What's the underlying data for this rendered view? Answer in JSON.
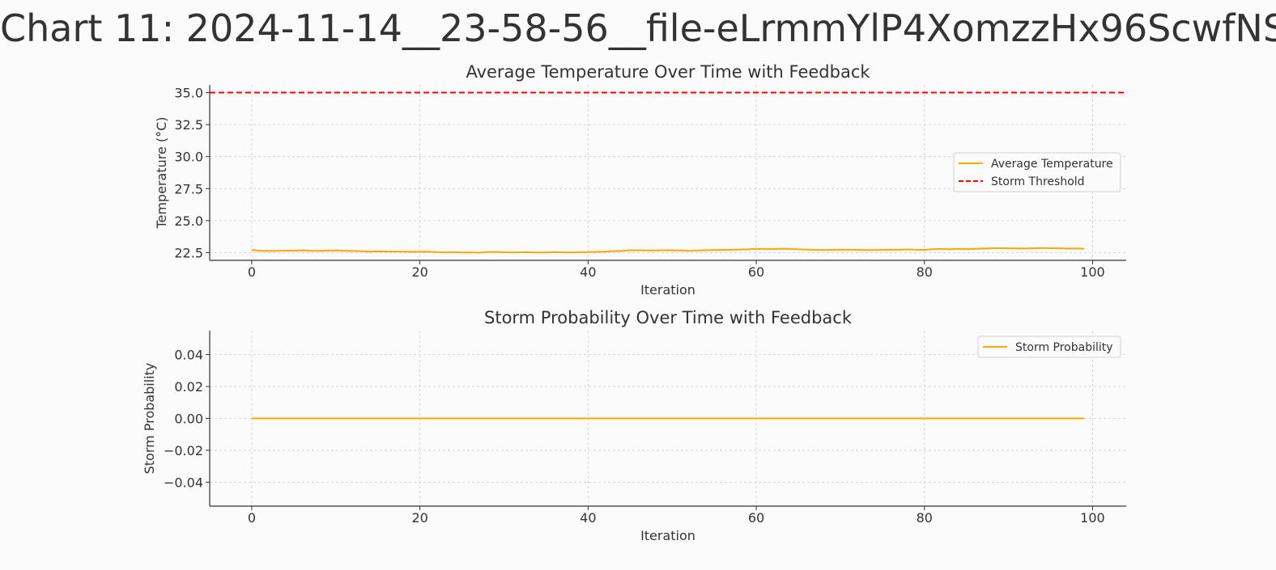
{
  "page_title": "Chart 11: 2024-11-14__23-58-56__file-eLrmmYlP4XomzzHx96ScwfNS",
  "colors": {
    "series": "#FFA500",
    "threshold": "#FF0000",
    "axis": "#333333",
    "grid": "#cccccc"
  },
  "chart_data": [
    {
      "type": "line",
      "title": "Average Temperature Over Time with Feedback",
      "xlabel": "Iteration",
      "ylabel": "Temperature (°C)",
      "xlim": [
        -5,
        104
      ],
      "ylim": [
        21.9,
        35.6
      ],
      "xticks": [
        0,
        20,
        40,
        60,
        80,
        100
      ],
      "xtick_labels": [
        "0",
        "20",
        "40",
        "60",
        "80",
        "100"
      ],
      "yticks": [
        22.5,
        25.0,
        27.5,
        30.0,
        32.5,
        35.0
      ],
      "ytick_labels": [
        "22.5",
        "25.0",
        "27.5",
        "30.0",
        "32.5",
        "35.0"
      ],
      "grid": true,
      "legend_position": "center-right",
      "series": [
        {
          "name": "Average Temperature",
          "style": "solid",
          "x": [
            0,
            1,
            2,
            3,
            4,
            5,
            6,
            7,
            8,
            9,
            10,
            11,
            12,
            13,
            14,
            15,
            16,
            17,
            18,
            19,
            20,
            21,
            22,
            23,
            24,
            25,
            26,
            27,
            28,
            29,
            30,
            31,
            32,
            33,
            34,
            35,
            36,
            37,
            38,
            39,
            40,
            41,
            42,
            43,
            44,
            45,
            46,
            47,
            48,
            49,
            50,
            51,
            52,
            53,
            54,
            55,
            56,
            57,
            58,
            59,
            60,
            61,
            62,
            63,
            64,
            65,
            66,
            67,
            68,
            69,
            70,
            71,
            72,
            73,
            74,
            75,
            76,
            77,
            78,
            79,
            80,
            81,
            82,
            83,
            84,
            85,
            86,
            87,
            88,
            89,
            90,
            91,
            92,
            93,
            94,
            95,
            96,
            97,
            98,
            99
          ],
          "values": [
            22.7,
            22.65,
            22.63,
            22.64,
            22.66,
            22.66,
            22.68,
            22.65,
            22.64,
            22.66,
            22.67,
            22.65,
            22.63,
            22.62,
            22.58,
            22.6,
            22.59,
            22.58,
            22.58,
            22.57,
            22.57,
            22.58,
            22.55,
            22.52,
            22.54,
            22.52,
            22.51,
            22.5,
            22.55,
            22.56,
            22.54,
            22.52,
            22.53,
            22.54,
            22.52,
            22.51,
            22.55,
            22.53,
            22.51,
            22.53,
            22.55,
            22.56,
            22.58,
            22.62,
            22.64,
            22.68,
            22.68,
            22.67,
            22.67,
            22.68,
            22.69,
            22.67,
            22.64,
            22.67,
            22.69,
            22.7,
            22.72,
            22.73,
            22.74,
            22.76,
            22.8,
            22.79,
            22.78,
            22.81,
            22.79,
            22.76,
            22.74,
            22.72,
            22.7,
            22.72,
            22.74,
            22.73,
            22.72,
            22.71,
            22.7,
            22.72,
            22.74,
            22.73,
            22.75,
            22.73,
            22.72,
            22.77,
            22.79,
            22.77,
            22.79,
            22.78,
            22.8,
            22.82,
            22.84,
            22.85,
            22.84,
            22.83,
            22.82,
            22.85,
            22.86,
            22.85,
            22.84,
            22.82,
            22.83,
            22.81
          ]
        },
        {
          "name": "Storm Threshold",
          "style": "dashed",
          "hline": 35.0
        }
      ]
    },
    {
      "type": "line",
      "title": "Storm Probability Over Time with Feedback",
      "xlabel": "Iteration",
      "ylabel": "Storm Probability",
      "xlim": [
        -5,
        104
      ],
      "ylim": [
        -0.055,
        0.055
      ],
      "xticks": [
        0,
        20,
        40,
        60,
        80,
        100
      ],
      "xtick_labels": [
        "0",
        "20",
        "40",
        "60",
        "80",
        "100"
      ],
      "yticks": [
        -0.04,
        -0.02,
        0.0,
        0.02,
        0.04
      ],
      "ytick_labels": [
        "−0.04",
        "−0.02",
        "0.00",
        "0.02",
        "0.04"
      ],
      "grid": true,
      "legend_position": "top-right",
      "series": [
        {
          "name": "Storm Probability",
          "style": "solid",
          "x": [
            0,
            99
          ],
          "values": [
            0.0,
            0.0
          ]
        }
      ]
    }
  ]
}
